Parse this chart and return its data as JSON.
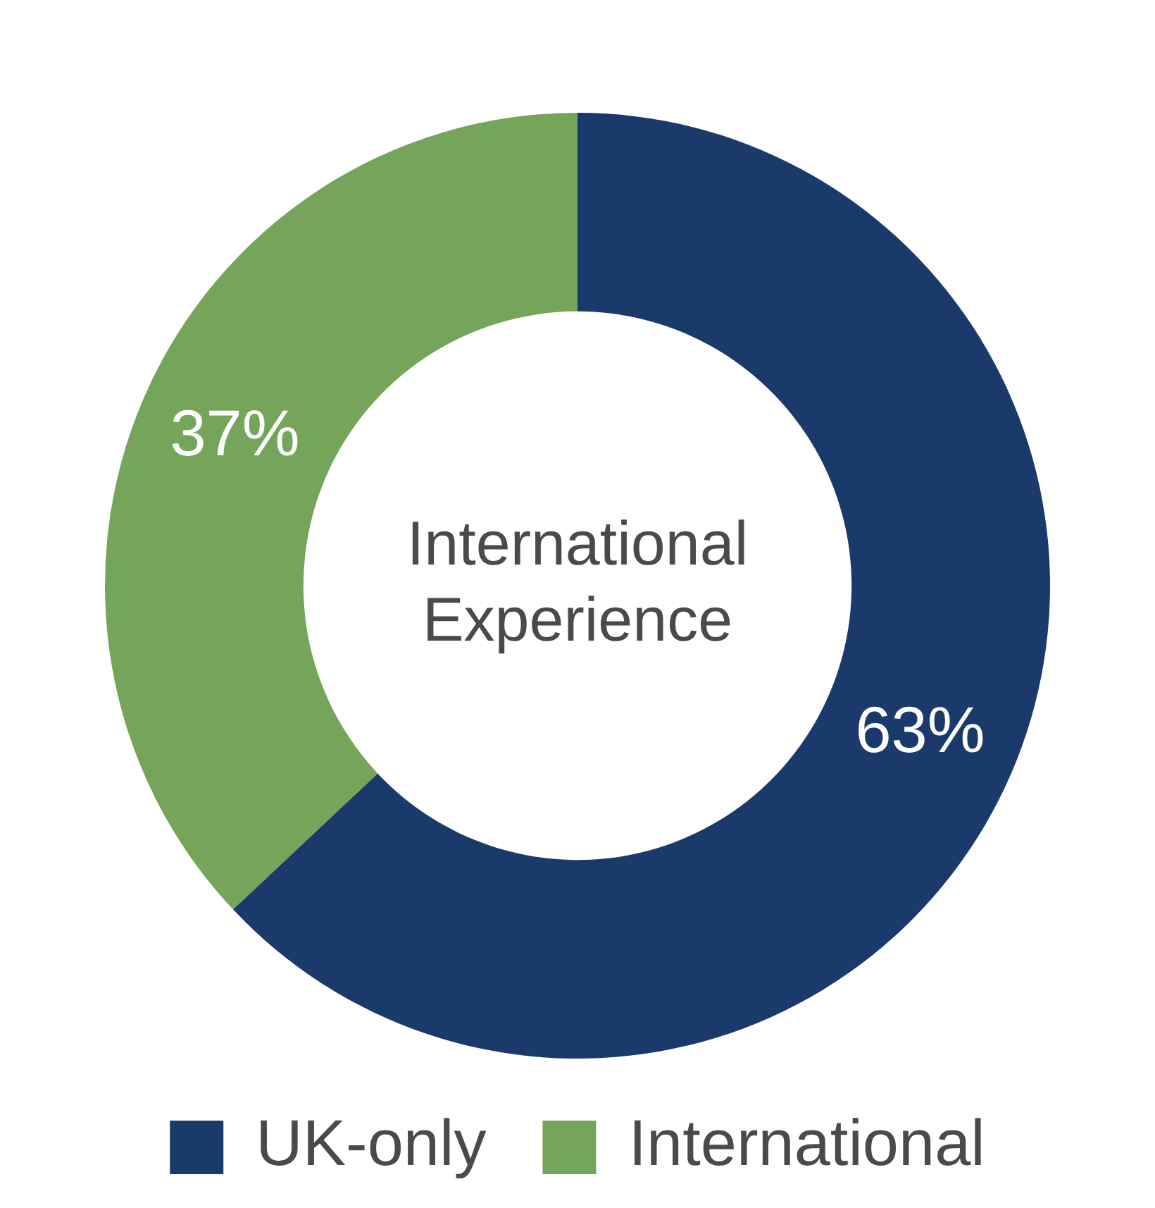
{
  "chart_data": {
    "type": "donut",
    "title": "International Experience",
    "categories": [
      "UK-only",
      "International"
    ],
    "values": [
      63,
      37
    ],
    "colors": [
      "#1a3a6b",
      "#74a55a"
    ],
    "value_labels": [
      "63%",
      "37%"
    ],
    "legend": "bottom"
  }
}
